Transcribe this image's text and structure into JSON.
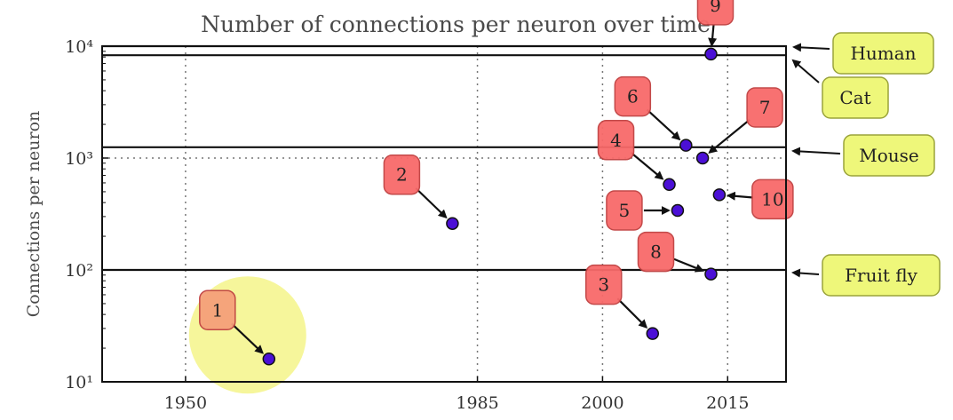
{
  "chart_data": {
    "type": "scatter",
    "title": "Number of connections per neuron over time",
    "xlabel": "",
    "ylabel": "Connections per neuron",
    "y_scale": "log",
    "xlim": [
      1940,
      2022
    ],
    "ylim": [
      10,
      10000
    ],
    "x_ticks": [
      "1950",
      "1985",
      "2000",
      "2015"
    ],
    "y_ticks": [
      "10¹",
      "10²",
      "10³",
      "10⁴"
    ],
    "grid": "dotted",
    "marker_color": "#4b0fd6",
    "points": [
      {
        "label": "1",
        "x": 1960,
        "y": 16,
        "highlighted": true
      },
      {
        "label": "2",
        "x": 1982,
        "y": 260
      },
      {
        "label": "3",
        "x": 2006,
        "y": 27
      },
      {
        "label": "4",
        "x": 2008,
        "y": 580
      },
      {
        "label": "5",
        "x": 2009,
        "y": 340
      },
      {
        "label": "6",
        "x": 2010,
        "y": 1300
      },
      {
        "label": "7",
        "x": 2012,
        "y": 1000
      },
      {
        "label": "8",
        "x": 2013,
        "y": 92
      },
      {
        "label": "9",
        "x": 2013,
        "y": 8500
      },
      {
        "label": "10",
        "x": 2014,
        "y": 470
      }
    ],
    "reference_lines": [
      {
        "name": "Human",
        "y": 10000
      },
      {
        "name": "Cat",
        "y": 8300
      },
      {
        "name": "Mouse",
        "y": 1250
      },
      {
        "name": "Fruit fly",
        "y": 100
      }
    ],
    "badge_color": "#f86a6a",
    "highlight_badge_color": "#f5a07a",
    "highlight_circle_color": "#f4f48a",
    "reference_box_color": "#eef77a"
  }
}
